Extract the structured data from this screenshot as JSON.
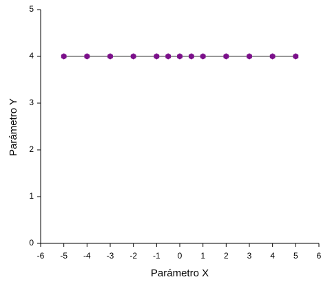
{
  "chart_data": {
    "type": "line",
    "xlabel": "Parámetro X",
    "ylabel": "Parámetro Y",
    "x": [
      -5,
      -4,
      -3,
      -2,
      -1,
      -0.5,
      0,
      0.5,
      1,
      2,
      3,
      4,
      5
    ],
    "values": [
      4,
      4,
      4,
      4,
      4,
      4,
      4,
      4,
      4,
      4,
      4,
      4,
      4
    ],
    "line_color": "#333333",
    "marker_color": "#7b0f8a",
    "marker": "hexagon",
    "xlim": [
      -6,
      6
    ],
    "xticks": [
      -6,
      -5,
      -4,
      -3,
      -2,
      -1,
      0,
      1,
      2,
      3,
      4,
      5,
      6
    ],
    "ylim": [
      0,
      5
    ],
    "yticks": [
      0,
      1,
      2,
      3,
      4,
      5
    ],
    "grid": false
  }
}
